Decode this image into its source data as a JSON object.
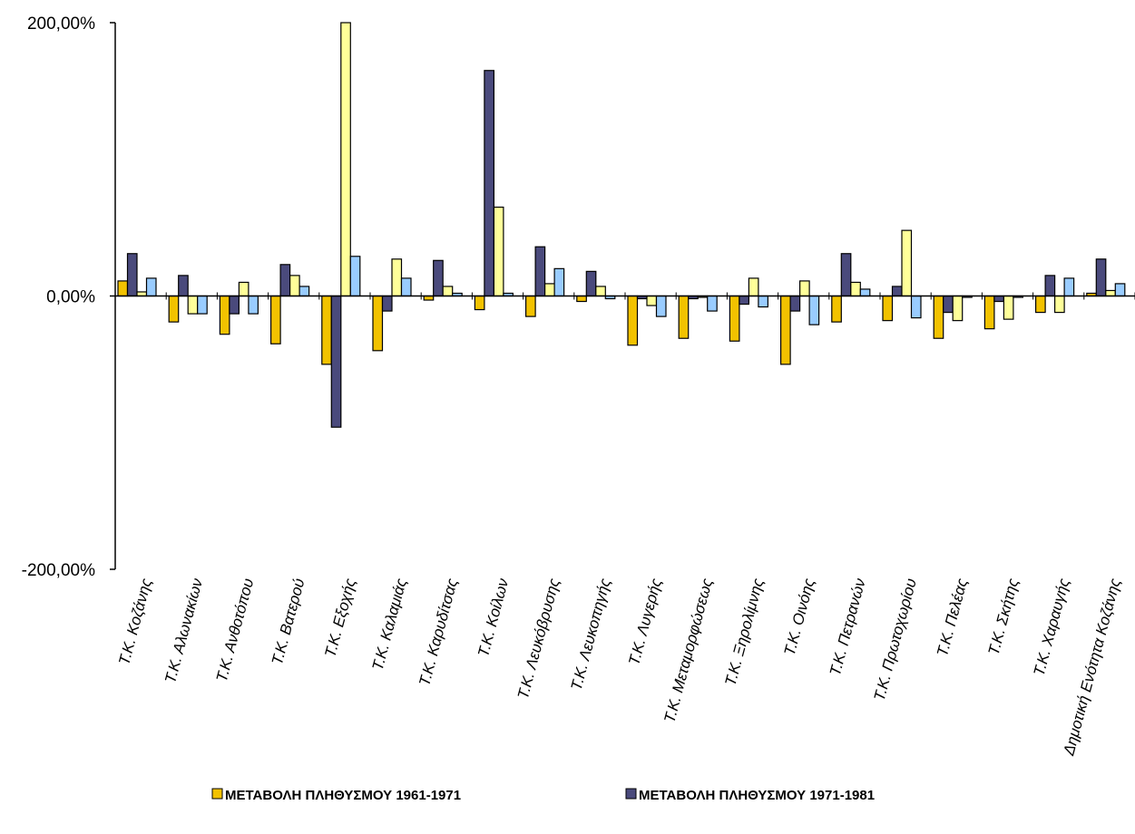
{
  "chart_data": {
    "type": "bar",
    "title": "",
    "xlabel": "",
    "ylabel": "",
    "ylim": [
      -200,
      200
    ],
    "yticks": [
      "200,00%",
      "0,00%",
      "-200,00%"
    ],
    "grid": false,
    "legend_position": "bottom",
    "categories": [
      "Τ.Κ. Κοζάνης",
      "Τ.Κ. Αλωνακίων",
      "Τ.Κ. Ανθοτόπου",
      "Τ.Κ. Βατερού",
      "Τ.Κ. Εξοχής",
      "Τ.Κ. Καλαμιάς",
      "Τ.Κ. Καρυδίτσας",
      "Τ.Κ. Κοίλων",
      "Τ.Κ. Λευκόβρυσης",
      "Τ.Κ. Λευκοπηγής",
      "Τ.Κ. Λυγερής",
      "Τ.Κ. Μεταμορφώσεως",
      "Τ.Κ. Ξηρολίμνης",
      "Τ.Κ. Οινόης",
      "Τ.Κ. Πετρανών",
      "Τ.Κ. Πρωτοχωρίου",
      "Τ.Κ. Πελέας",
      "Τ.Κ. Σκήτης",
      "Τ.Κ. Χαραυγής",
      "Δημοτική Ενότητα Κοζάνης"
    ],
    "series": [
      {
        "name": "ΜΕΤΑΒΟΛΗ ΠΛΗΘΥΣΜΟΥ  1961-1971",
        "color": "#f2c200",
        "values": [
          11,
          -19,
          -28,
          -35,
          -50,
          -40,
          -3,
          -10,
          -15,
          -4,
          -36,
          -31,
          -33,
          -50,
          -19,
          -18,
          -31,
          -24,
          -12,
          2
        ]
      },
      {
        "name": "ΜΕΤΑΒΟΛΗ ΠΛΗΘΥΣΜΟΥ  1971-1981",
        "color": "#4a4a7c",
        "values": [
          31,
          15,
          -13,
          23,
          -96,
          -11,
          26,
          165,
          36,
          18,
          -2,
          -2,
          -6,
          -11,
          31,
          7,
          -12,
          -4,
          15,
          27
        ]
      },
      {
        "name": "",
        "color": "#ffff99",
        "values": [
          3,
          -13,
          10,
          15,
          200,
          27,
          7,
          65,
          9,
          7,
          -7,
          -1,
          13,
          11,
          10,
          48,
          -18,
          -17,
          -12,
          4
        ]
      },
      {
        "name": "",
        "color": "#99ccff",
        "values": [
          13,
          -13,
          -13,
          7,
          29,
          13,
          2,
          2,
          20,
          -2,
          -15,
          -11,
          -8,
          -21,
          5,
          -16,
          -1,
          -1,
          13,
          9
        ]
      }
    ]
  }
}
